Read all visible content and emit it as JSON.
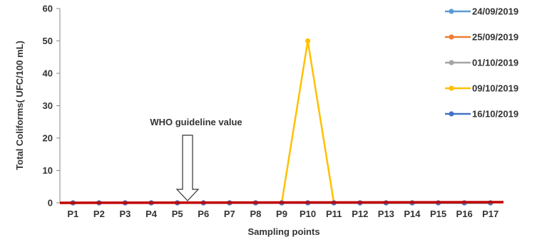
{
  "chart_data": {
    "type": "line",
    "title": "",
    "xlabel": "Sampling points",
    "ylabel": "Total Coliforms( UFC/100  mL)",
    "ylim": [
      0,
      60
    ],
    "yticks": [
      0,
      10,
      20,
      30,
      40,
      50,
      60
    ],
    "categories": [
      "P1",
      "P2",
      "P3",
      "P4",
      "P5",
      "P6",
      "P7",
      "P8",
      "P9",
      "P10",
      "P11",
      "P12",
      "P13",
      "P14",
      "P15",
      "P16",
      "P17"
    ],
    "series": [
      {
        "name": "24/09/2019",
        "color": "#5b9bd5",
        "values": [
          0,
          0,
          0,
          0,
          0,
          0,
          0,
          0,
          0,
          0,
          0,
          0,
          0,
          0,
          0,
          0,
          0
        ]
      },
      {
        "name": "25/09/2019",
        "color": "#ed7d31",
        "values": [
          0,
          0,
          0,
          0,
          0,
          0,
          0,
          0,
          0,
          0,
          0,
          0,
          0,
          0,
          0,
          0,
          0
        ]
      },
      {
        "name": "01/10/2019",
        "color": "#a5a5a5",
        "values": [
          0,
          0,
          0,
          0,
          0,
          0,
          0,
          0,
          0,
          0,
          0,
          0,
          0,
          0,
          0,
          0,
          0
        ]
      },
      {
        "name": "09/10/2019",
        "color": "#ffc000",
        "values": [
          0,
          0,
          0,
          0,
          0,
          0,
          0,
          0,
          0,
          50,
          0,
          0,
          0,
          0,
          0,
          0,
          0
        ]
      },
      {
        "name": "16/10/2019",
        "color": "#4472c4",
        "values": [
          0,
          0,
          0,
          0,
          0,
          0,
          0,
          0,
          0,
          0,
          0,
          0,
          0,
          0,
          0,
          0,
          0
        ]
      }
    ],
    "guideline": {
      "label": "WHO guideline value",
      "value": 0,
      "color": "#c00000",
      "points_to": "P5"
    },
    "legend_position": "right",
    "grid": false
  }
}
